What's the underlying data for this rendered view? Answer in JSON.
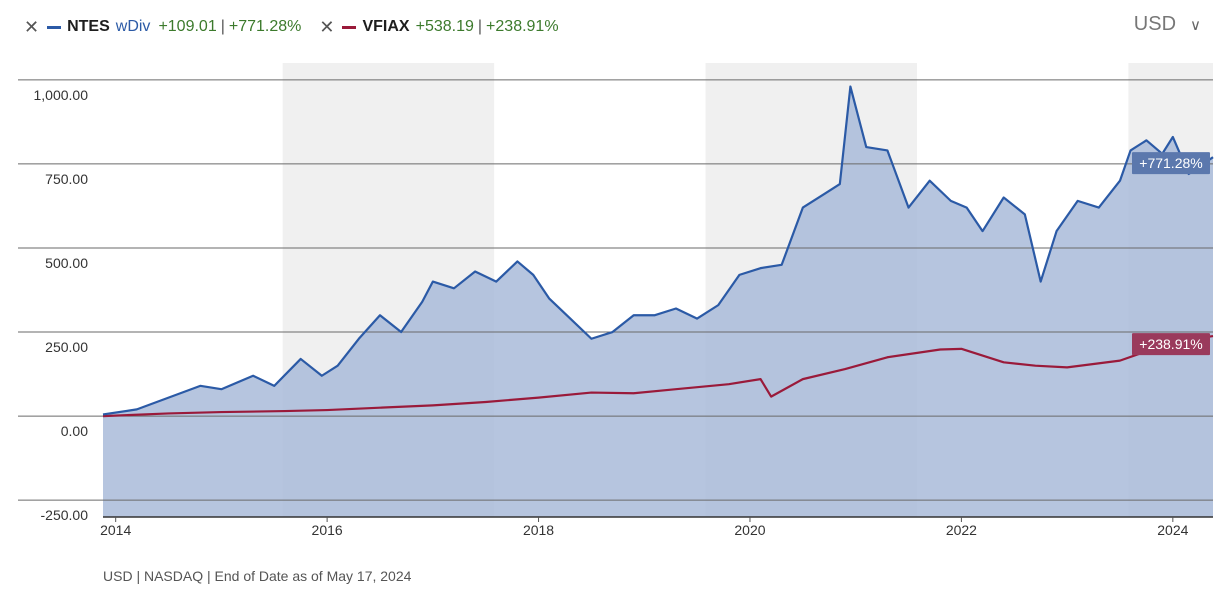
{
  "legend": {
    "series": [
      {
        "ticker": "NTES",
        "sub": "wDiv",
        "change_abs": "+109.01",
        "sep": "|",
        "change_pct": "+771.28%",
        "color": "#2b5aa6"
      },
      {
        "ticker": "VFIAX",
        "sub": "",
        "change_abs": "+538.19",
        "sep": "|",
        "change_pct": "+238.91%",
        "color": "#9a1a3a"
      }
    ]
  },
  "currency": {
    "label": "USD",
    "chevron": "chevron-down-icon"
  },
  "footer": {
    "text": "USD | NASDAQ | End of Date as of May 17, 2024"
  },
  "chart_data": {
    "type": "area",
    "x_domain": [
      2013.88,
      2024.38
    ],
    "ylim": [
      -300,
      1050
    ],
    "y_ticks": [
      1000,
      750,
      500,
      250,
      0,
      -250
    ],
    "y_tick_labels": [
      "1,000.00",
      "750.00",
      "500.00",
      "250.00",
      "0.00",
      "-250.00"
    ],
    "x_ticks": [
      2014,
      2016,
      2018,
      2020,
      2022,
      2024
    ],
    "x_tick_labels": [
      "2014",
      "2016",
      "2018",
      "2020",
      "2022",
      "2024"
    ],
    "shaded_bands": [
      [
        2015.58,
        2017.58
      ],
      [
        2019.58,
        2021.58
      ],
      [
        2023.58,
        2024.38
      ]
    ],
    "end_labels": [
      "+771.28%",
      "+238.91%"
    ],
    "series": [
      {
        "name": "NTES",
        "color": "#2b5aa6",
        "fill": "#a9bbd9",
        "x": [
          2013.88,
          2014.2,
          2014.5,
          2014.8,
          2015.0,
          2015.3,
          2015.5,
          2015.75,
          2015.95,
          2016.1,
          2016.3,
          2016.5,
          2016.7,
          2016.9,
          2017.0,
          2017.2,
          2017.4,
          2017.6,
          2017.8,
          2017.95,
          2018.1,
          2018.3,
          2018.5,
          2018.7,
          2018.9,
          2019.1,
          2019.3,
          2019.5,
          2019.7,
          2019.9,
          2020.1,
          2020.3,
          2020.5,
          2020.7,
          2020.85,
          2020.95,
          2021.1,
          2021.3,
          2021.5,
          2021.7,
          2021.9,
          2022.05,
          2022.2,
          2022.4,
          2022.6,
          2022.75,
          2022.9,
          2023.1,
          2023.3,
          2023.5,
          2023.6,
          2023.75,
          2023.9,
          2024.0,
          2024.15,
          2024.38
        ],
        "y": [
          5,
          20,
          55,
          90,
          80,
          120,
          90,
          170,
          120,
          150,
          230,
          300,
          250,
          340,
          400,
          380,
          430,
          400,
          460,
          420,
          350,
          290,
          230,
          250,
          300,
          300,
          320,
          290,
          330,
          420,
          440,
          450,
          620,
          660,
          690,
          980,
          800,
          790,
          620,
          700,
          640,
          620,
          550,
          650,
          600,
          400,
          550,
          640,
          620,
          700,
          790,
          820,
          780,
          830,
          720,
          770
        ]
      },
      {
        "name": "VFIAX",
        "color": "#9a1a3a",
        "x": [
          2013.88,
          2014.5,
          2015.0,
          2015.6,
          2016.0,
          2016.5,
          2017.0,
          2017.5,
          2018.0,
          2018.5,
          2018.9,
          2019.3,
          2019.8,
          2020.1,
          2020.2,
          2020.5,
          2020.9,
          2021.3,
          2021.8,
          2022.0,
          2022.4,
          2022.7,
          2023.0,
          2023.5,
          2024.0,
          2024.38
        ],
        "y": [
          0,
          8,
          12,
          15,
          18,
          25,
          32,
          42,
          55,
          70,
          68,
          80,
          95,
          110,
          58,
          110,
          140,
          175,
          198,
          200,
          160,
          150,
          145,
          165,
          220,
          238
        ]
      }
    ]
  }
}
